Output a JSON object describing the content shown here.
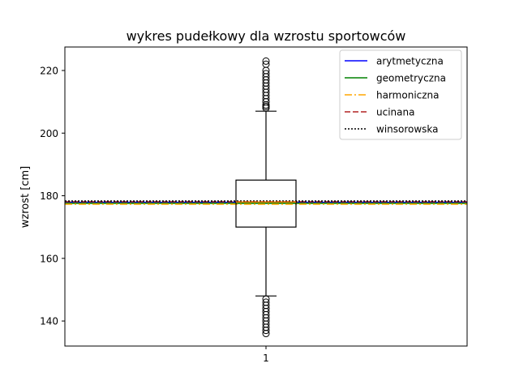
{
  "chart_data": {
    "type": "box",
    "title": "wykres pudełkowy dla wzrostu sportowców",
    "ylabel": "wzrost [cm]",
    "xlabel": "",
    "categories": [
      "1"
    ],
    "ylim": [
      132,
      227.5
    ],
    "yticks": [
      140,
      160,
      180,
      200,
      220
    ],
    "box": {
      "whisker_low": 148,
      "q1": 170,
      "median": 178,
      "q3": 185,
      "whisker_high": 207
    },
    "outliers_high": [
      208,
      208.5,
      209,
      210,
      211,
      212,
      213,
      214,
      215,
      216,
      217,
      218,
      219,
      220,
      222,
      223
    ],
    "outliers_low": [
      136,
      137,
      138,
      139,
      140,
      141,
      142,
      143,
      144,
      145,
      146,
      147
    ],
    "mean_lines": [
      {
        "name": "arytmetyczna",
        "value": 177.9,
        "color": "#0000ff",
        "style": "solid"
      },
      {
        "name": "geometryczna",
        "value": 177.6,
        "color": "#008000",
        "style": "solid"
      },
      {
        "name": "harmoniczna",
        "value": 177.3,
        "color": "#ffa500",
        "style": "dashdot"
      },
      {
        "name": "ucinana",
        "value": 178.1,
        "color": "#b22222",
        "style": "dashed"
      },
      {
        "name": "winsorowska",
        "value": 178.3,
        "color": "#000000",
        "style": "dotted"
      }
    ],
    "legend_position": "top-right",
    "grid": false
  }
}
